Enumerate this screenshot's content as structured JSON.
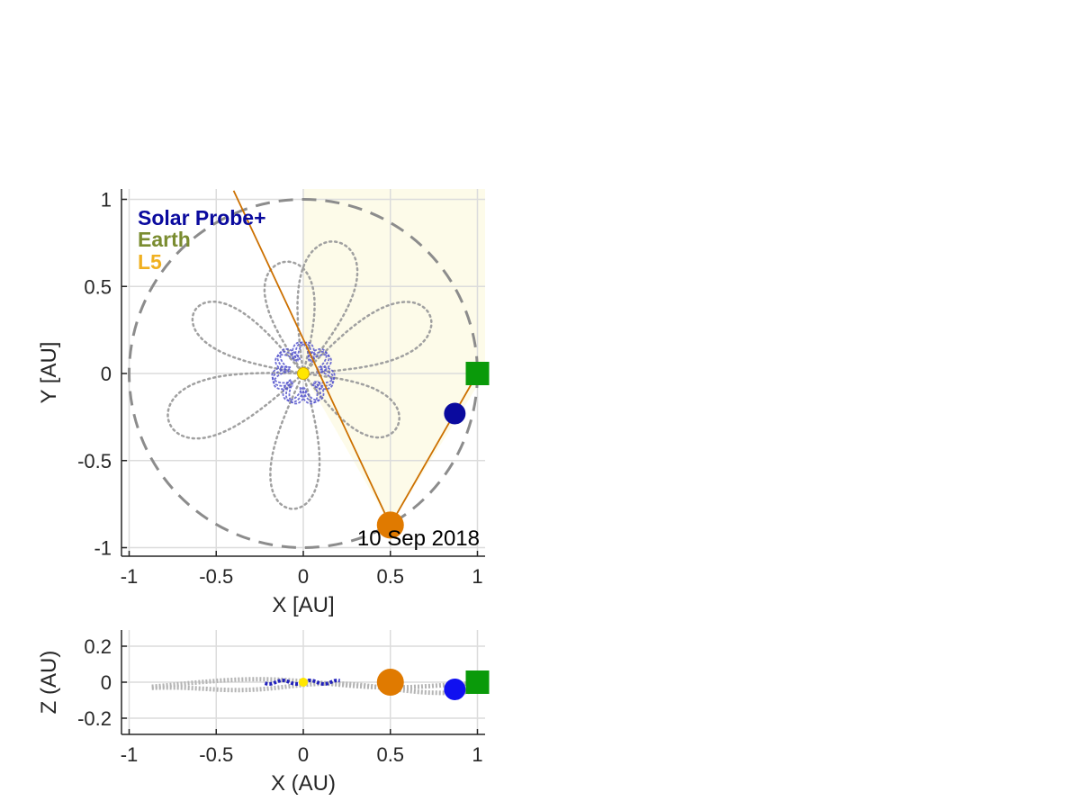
{
  "chart_data": [
    {
      "type": "scatter",
      "panel": "top",
      "xlabel": "X [AU]",
      "ylabel": "Y [AU]",
      "xlim": [
        -1.05,
        1.05
      ],
      "ylim": [
        -1.05,
        1.05
      ],
      "xticks": [
        -1,
        -0.5,
        0,
        0.5,
        1
      ],
      "xtick_labels": [
        "-1",
        "-0.5",
        "0",
        "0.5",
        "1"
      ],
      "yticks": [
        -1,
        -0.5,
        0,
        0.5,
        1
      ],
      "ytick_labels": [
        "-1",
        "-0.5",
        "0",
        "0.5",
        "1"
      ],
      "grid": true,
      "legend": {
        "placement": "top-left",
        "entries": [
          {
            "name": "Solar Probe+",
            "color": "#0a0a9e"
          },
          {
            "name": "Earth",
            "color": "#7a8c30"
          },
          {
            "name": "L5",
            "color": "#f0b020"
          }
        ]
      },
      "annotation": "10 Sep 2018",
      "markers": {
        "sun": {
          "x": 0,
          "y": 0,
          "color": "#ffe600"
        },
        "solar_probe": {
          "x": 0.87,
          "y": -0.23,
          "color": "#0a0a9e"
        },
        "earth": {
          "x": 1.0,
          "y": 0.0,
          "color": "#0a9a0a",
          "shape": "square"
        },
        "l5": {
          "x": 0.5,
          "y": -0.87,
          "color": "#e07a00"
        }
      },
      "earth_orbit_radius": 1.0,
      "l5_lines": {
        "to_earth": [
          1.0,
          0.0
        ],
        "toward_sun_extended": [
          -0.4,
          1.05
        ],
        "color": "#cc7000"
      },
      "shaded_region_color": "#fdfbe9",
      "trajectory_color": "#a0a0a0",
      "probe_orbit_color": "#5555cc"
    },
    {
      "type": "scatter",
      "panel": "bottom",
      "xlabel": "X (AU)",
      "ylabel": "Z (AU)",
      "xlim": [
        -1.05,
        1.05
      ],
      "ylim": [
        -0.3,
        0.3
      ],
      "xticks": [
        -1,
        -0.5,
        0,
        0.5,
        1
      ],
      "xtick_labels": [
        "-1",
        "-0.5",
        "0",
        "0.5",
        "1"
      ],
      "yticks": [
        -0.2,
        0,
        0.2
      ],
      "ytick_labels": [
        "-0.2",
        "0",
        "0.2"
      ],
      "grid": true,
      "markers": {
        "sun": {
          "x": 0,
          "z": 0,
          "color": "#ffe600"
        },
        "solar_probe": {
          "x": 0.87,
          "z": -0.04,
          "color": "#1010f0"
        },
        "earth": {
          "x": 1.0,
          "z": 0.0,
          "color": "#0a9a0a",
          "shape": "square"
        },
        "l5": {
          "x": 0.5,
          "z": 0.0,
          "color": "#e07a00"
        }
      }
    }
  ]
}
